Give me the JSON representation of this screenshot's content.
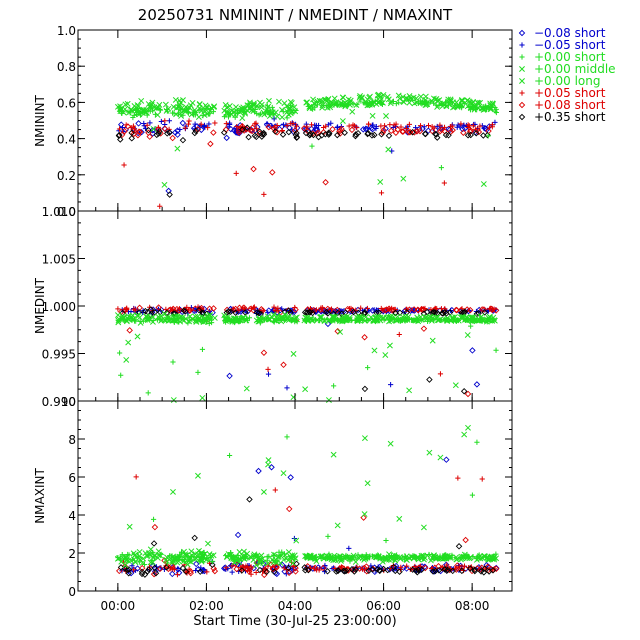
{
  "title": "20250731  NMININT  /  NMEDINT  /  NMAXINT",
  "xlabel": "Start Time (30-Jul-25 23:00:00)",
  "x_ticks": [
    "00:00",
    "02:00",
    "04:00",
    "06:00",
    "08:00"
  ],
  "legend": [
    {
      "marker": "diamond",
      "label": "−0.08 short",
      "color": "#0000cc"
    },
    {
      "marker": "plus",
      "label": "−0.05 short",
      "color": "#0000cc"
    },
    {
      "marker": "plus",
      "label": "+0.00 short",
      "color": "#22dd22"
    },
    {
      "marker": "cross",
      "label": "+0.00 middle",
      "color": "#22dd22"
    },
    {
      "marker": "cross",
      "label": "+0.00 long",
      "color": "#22dd22"
    },
    {
      "marker": "plus",
      "label": "+0.05 short",
      "color": "#dd0000"
    },
    {
      "marker": "diamond",
      "label": "+0.08 short",
      "color": "#dd0000"
    },
    {
      "marker": "diamond",
      "label": "+0.35 short",
      "color": "#000000"
    }
  ],
  "chart_data": [
    {
      "type": "scatter",
      "ylabel": "NMININT",
      "ylim": [
        0.0,
        1.0
      ],
      "y_ticks": [
        "0.0",
        "0.2",
        "0.4",
        "0.6",
        "0.8",
        "1.0"
      ],
      "x_range_hours": [
        -0.9,
        8.9
      ],
      "series_levels": {
        "-0.08 short": 0.45,
        "-0.05 short": 0.47,
        "+0.00 short": 0.55,
        "+0.00 middle": 0.55,
        "+0.00 long": 0.58,
        "+0.05 short": 0.47,
        "+0.08 short": 0.44,
        "+0.35 short": 0.42
      }
    },
    {
      "type": "scatter",
      "ylabel": "NMEDINT",
      "ylim": [
        0.99,
        1.01
      ],
      "y_ticks": [
        "0.990",
        "0.995",
        "1.000",
        "1.005",
        "1.010"
      ],
      "x_range_hours": [
        -0.9,
        8.9
      ],
      "series_levels": {
        "-0.08 short": 0.9995,
        "-0.05 short": 0.9995,
        "+0.00 short": 0.9985,
        "+0.00 middle": 0.9985,
        "+0.00 long": 0.9988,
        "+0.05 short": 0.9997,
        "+0.08 short": 0.9996,
        "+0.35 short": 0.9993
      }
    },
    {
      "type": "scatter",
      "ylabel": "NMAXINT",
      "ylim": [
        0,
        10
      ],
      "y_ticks": [
        "0",
        "2",
        "4",
        "6",
        "8",
        "10"
      ],
      "x_range_hours": [
        -0.9,
        8.9
      ],
      "series_levels": {
        "-0.08 short": 1.2,
        "-0.05 short": 1.2,
        "+0.00 short": 1.8,
        "+0.00 middle": 1.7,
        "+0.00 long": 1.8,
        "+0.05 short": 1.2,
        "+0.08 short": 1.2,
        "+0.35 short": 1.1
      }
    }
  ]
}
